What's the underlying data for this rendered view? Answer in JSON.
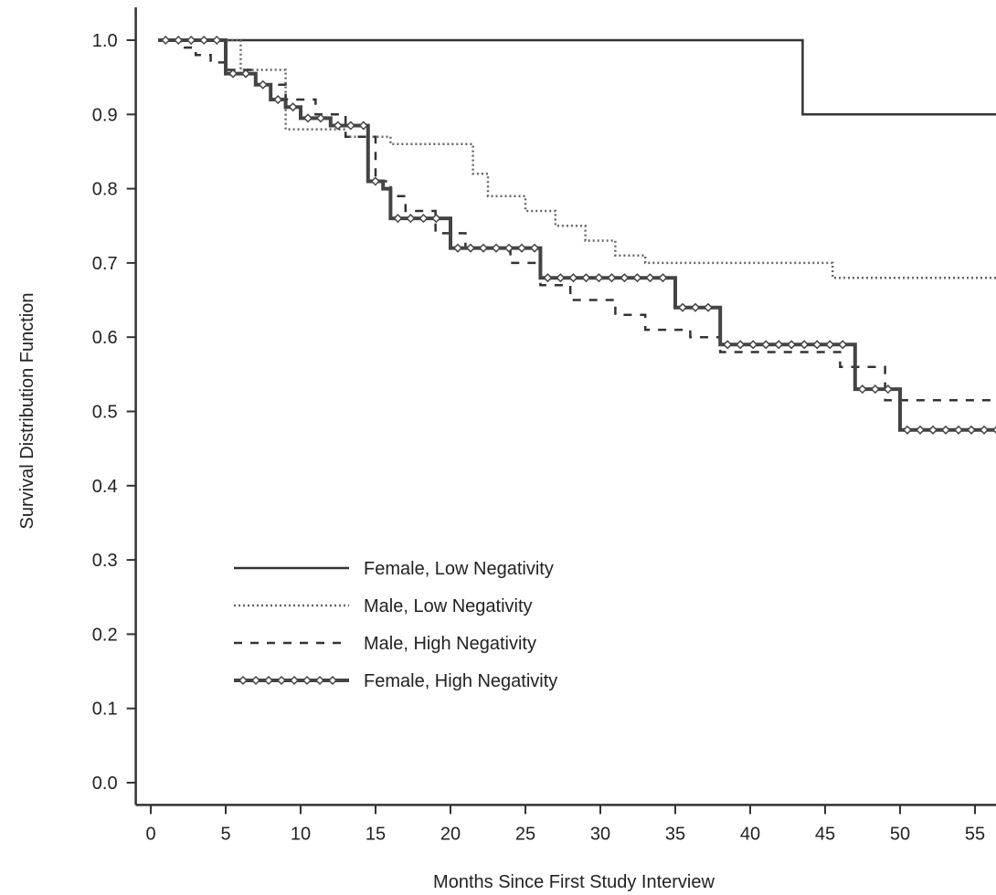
{
  "chart_data": {
    "type": "line",
    "xlabel": "Months Since First Study Interview",
    "ylabel": "Survival Distribution Function",
    "xlim": [
      -1,
      66
    ],
    "ylim": [
      -0.03,
      1.05
    ],
    "x_ticks": [
      0,
      5,
      10,
      15,
      20,
      25,
      30,
      35,
      40,
      45,
      50,
      55,
      60,
      65
    ],
    "y_ticks": [
      0.0,
      0.1,
      0.2,
      0.3,
      0.4,
      0.5,
      0.6,
      0.7,
      0.8,
      0.9,
      1.0
    ],
    "y_tick_labels": [
      "0.0",
      "0.1",
      "0.2",
      "0.3",
      "0.4",
      "0.5",
      "0.6",
      "0.7",
      "0.8",
      "0.9",
      "1.0"
    ],
    "grid": false,
    "legend_position": "lower-left",
    "step": true,
    "series": [
      {
        "name": "Female, Low Negativity",
        "style": "solid",
        "points": [
          [
            0.5,
            1.0
          ],
          [
            43.5,
            1.0
          ],
          [
            43.5,
            0.9
          ],
          [
            60,
            0.9
          ]
        ]
      },
      {
        "name": "Male, Low Negativity",
        "style": "dotted",
        "points": [
          [
            0.5,
            1.0
          ],
          [
            6,
            1.0
          ],
          [
            6,
            0.96
          ],
          [
            9,
            0.96
          ],
          [
            9,
            0.88
          ],
          [
            13,
            0.88
          ],
          [
            13,
            0.87
          ],
          [
            16,
            0.87
          ],
          [
            16,
            0.86
          ],
          [
            21.5,
            0.86
          ],
          [
            21.5,
            0.82
          ],
          [
            22.5,
            0.82
          ],
          [
            22.5,
            0.79
          ],
          [
            25,
            0.79
          ],
          [
            25,
            0.77
          ],
          [
            27,
            0.77
          ],
          [
            27,
            0.75
          ],
          [
            29,
            0.75
          ],
          [
            29,
            0.73
          ],
          [
            31,
            0.73
          ],
          [
            31,
            0.71
          ],
          [
            33,
            0.71
          ],
          [
            33,
            0.7
          ],
          [
            45.5,
            0.7
          ],
          [
            45.5,
            0.68
          ],
          [
            60,
            0.68
          ]
        ]
      },
      {
        "name": "Male, High Negativity",
        "style": "dashed",
        "points": [
          [
            0.5,
            1.0
          ],
          [
            2,
            1.0
          ],
          [
            2,
            0.99
          ],
          [
            3,
            0.99
          ],
          [
            3,
            0.98
          ],
          [
            4,
            0.98
          ],
          [
            4,
            0.97
          ],
          [
            5,
            0.97
          ],
          [
            5,
            0.96
          ],
          [
            7,
            0.96
          ],
          [
            7,
            0.94
          ],
          [
            9,
            0.94
          ],
          [
            9,
            0.92
          ],
          [
            11,
            0.92
          ],
          [
            11,
            0.9
          ],
          [
            13,
            0.9
          ],
          [
            13,
            0.87
          ],
          [
            15,
            0.87
          ],
          [
            15,
            0.81
          ],
          [
            16,
            0.81
          ],
          [
            16,
            0.79
          ],
          [
            17,
            0.79
          ],
          [
            17,
            0.77
          ],
          [
            19,
            0.77
          ],
          [
            19,
            0.74
          ],
          [
            21,
            0.74
          ],
          [
            21,
            0.72
          ],
          [
            24,
            0.72
          ],
          [
            24,
            0.7
          ],
          [
            26,
            0.7
          ],
          [
            26,
            0.67
          ],
          [
            28,
            0.67
          ],
          [
            28,
            0.65
          ],
          [
            31,
            0.65
          ],
          [
            31,
            0.63
          ],
          [
            33,
            0.63
          ],
          [
            33,
            0.61
          ],
          [
            36,
            0.61
          ],
          [
            36,
            0.6
          ],
          [
            38,
            0.6
          ],
          [
            38,
            0.58
          ],
          [
            46,
            0.58
          ],
          [
            46,
            0.56
          ],
          [
            49,
            0.56
          ],
          [
            49,
            0.515
          ],
          [
            60,
            0.515
          ]
        ]
      },
      {
        "name": "Female, High Negativity",
        "style": "solid-markers",
        "points": [
          [
            0.5,
            1.0
          ],
          [
            5,
            1.0
          ],
          [
            5,
            0.955
          ],
          [
            7,
            0.955
          ],
          [
            7,
            0.94
          ],
          [
            8,
            0.94
          ],
          [
            8,
            0.92
          ],
          [
            9,
            0.92
          ],
          [
            9,
            0.91
          ],
          [
            10,
            0.91
          ],
          [
            10,
            0.895
          ],
          [
            12,
            0.895
          ],
          [
            12,
            0.885
          ],
          [
            14.5,
            0.885
          ],
          [
            14.5,
            0.81
          ],
          [
            15.5,
            0.81
          ],
          [
            15.5,
            0.8
          ],
          [
            16,
            0.8
          ],
          [
            16,
            0.76
          ],
          [
            20,
            0.76
          ],
          [
            20,
            0.72
          ],
          [
            26,
            0.72
          ],
          [
            26,
            0.68
          ],
          [
            35,
            0.68
          ],
          [
            35,
            0.64
          ],
          [
            38,
            0.64
          ],
          [
            38,
            0.59
          ],
          [
            47,
            0.59
          ],
          [
            47,
            0.53
          ],
          [
            50,
            0.53
          ],
          [
            50,
            0.475
          ],
          [
            60,
            0.475
          ]
        ]
      }
    ]
  }
}
